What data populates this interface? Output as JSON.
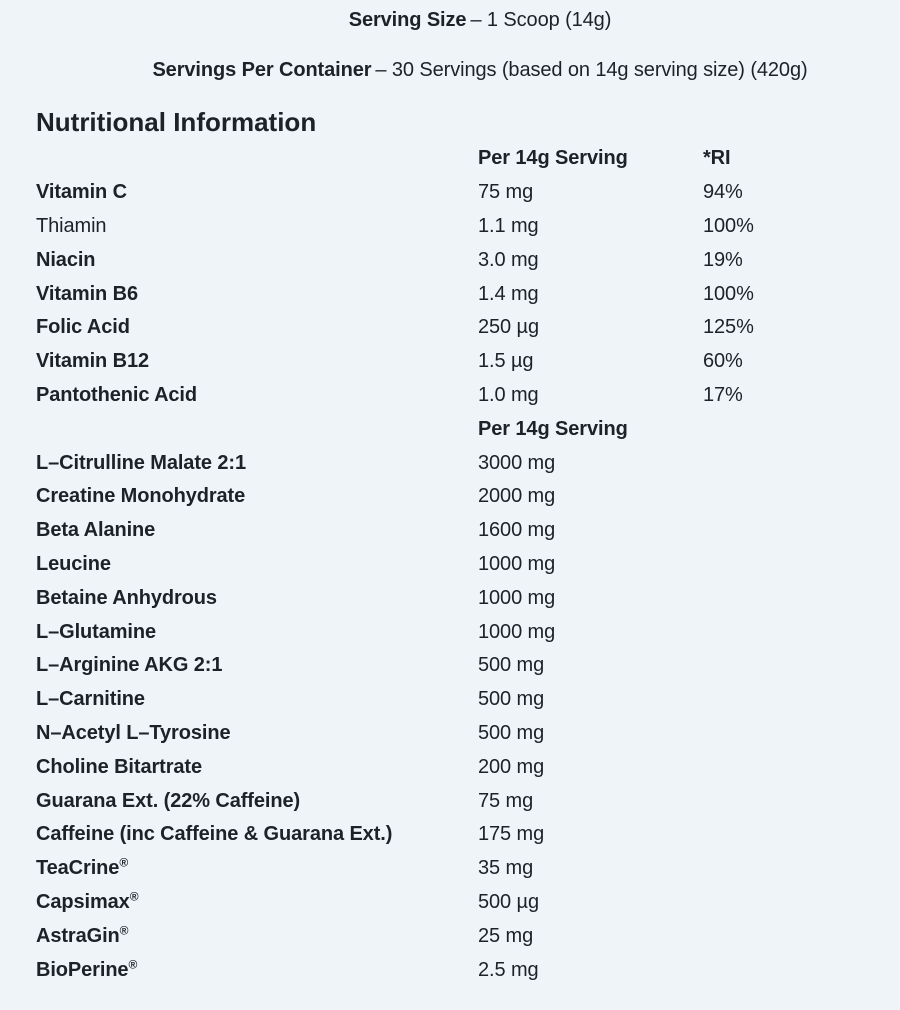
{
  "page": {
    "bg_color": "#EEF4F8",
    "text_color": "#1D2128"
  },
  "header": {
    "serving_size_label": "Serving Size",
    "serving_size_value": "– 1 Scoop (14g)",
    "servings_per_container_label": "Servings Per Container",
    "servings_per_container_value": "– 30 Servings (based on 14g serving size) (420g)"
  },
  "section_title": "Nutritional Information",
  "table": {
    "columns": {
      "serving_header": "Per 14g Serving",
      "ri_header": "*RI",
      "serving_header_2": "Per 14g Serving"
    },
    "vitamins": [
      {
        "name": "Vitamin C",
        "bold": true,
        "amount": "75 mg",
        "ri": "94%"
      },
      {
        "name": "Thiamin",
        "bold": false,
        "amount": "1.1 mg",
        "ri": "100%"
      },
      {
        "name": "Niacin",
        "bold": true,
        "amount": "3.0 mg",
        "ri": "19%"
      },
      {
        "name": "Vitamin B6",
        "bold": true,
        "amount": "1.4 mg",
        "ri": "100%"
      },
      {
        "name": "Folic Acid",
        "bold": true,
        "amount": "250 µg",
        "ri": "125%"
      },
      {
        "name": "Vitamin B12",
        "bold": true,
        "amount": "1.5 µg",
        "ri": "60%"
      },
      {
        "name": "Pantothenic Acid",
        "bold": true,
        "amount": "1.0 mg",
        "ri": "17%"
      }
    ],
    "ingredients": [
      {
        "name": "L–Citrulline Malate 2:1",
        "amount": "3000 mg"
      },
      {
        "name": "Creatine Monohydrate",
        "amount": "2000 mg"
      },
      {
        "name": "Beta Alanine",
        "amount": "1600 mg"
      },
      {
        "name": "Leucine",
        "amount": "1000 mg"
      },
      {
        "name": "Betaine Anhydrous",
        "amount": "1000 mg"
      },
      {
        "name": "L–Glutamine",
        "amount": "1000 mg"
      },
      {
        "name": "L–Arginine AKG 2:1",
        "amount": "500 mg"
      },
      {
        "name": "L–Carnitine",
        "amount": "500 mg"
      },
      {
        "name": "N–Acetyl L–Tyrosine",
        "amount": "500 mg"
      },
      {
        "name": "Choline Bitartrate",
        "amount": "200 mg"
      },
      {
        "name": "Guarana Ext. (22% Caffeine)",
        "amount": "75 mg"
      },
      {
        "name": "Caffeine (inc Caffeine & Guarana Ext.)",
        "amount": "175 mg"
      },
      {
        "name": "TeaCrine",
        "reg": "®",
        "amount": "35 mg"
      },
      {
        "name": "Capsimax",
        "reg": "®",
        "amount": "500 µg"
      },
      {
        "name": "AstraGin",
        "reg": "®",
        "amount": "25 mg"
      },
      {
        "name": "BioPerine",
        "reg": "®",
        "amount": "2.5 mg"
      }
    ]
  }
}
